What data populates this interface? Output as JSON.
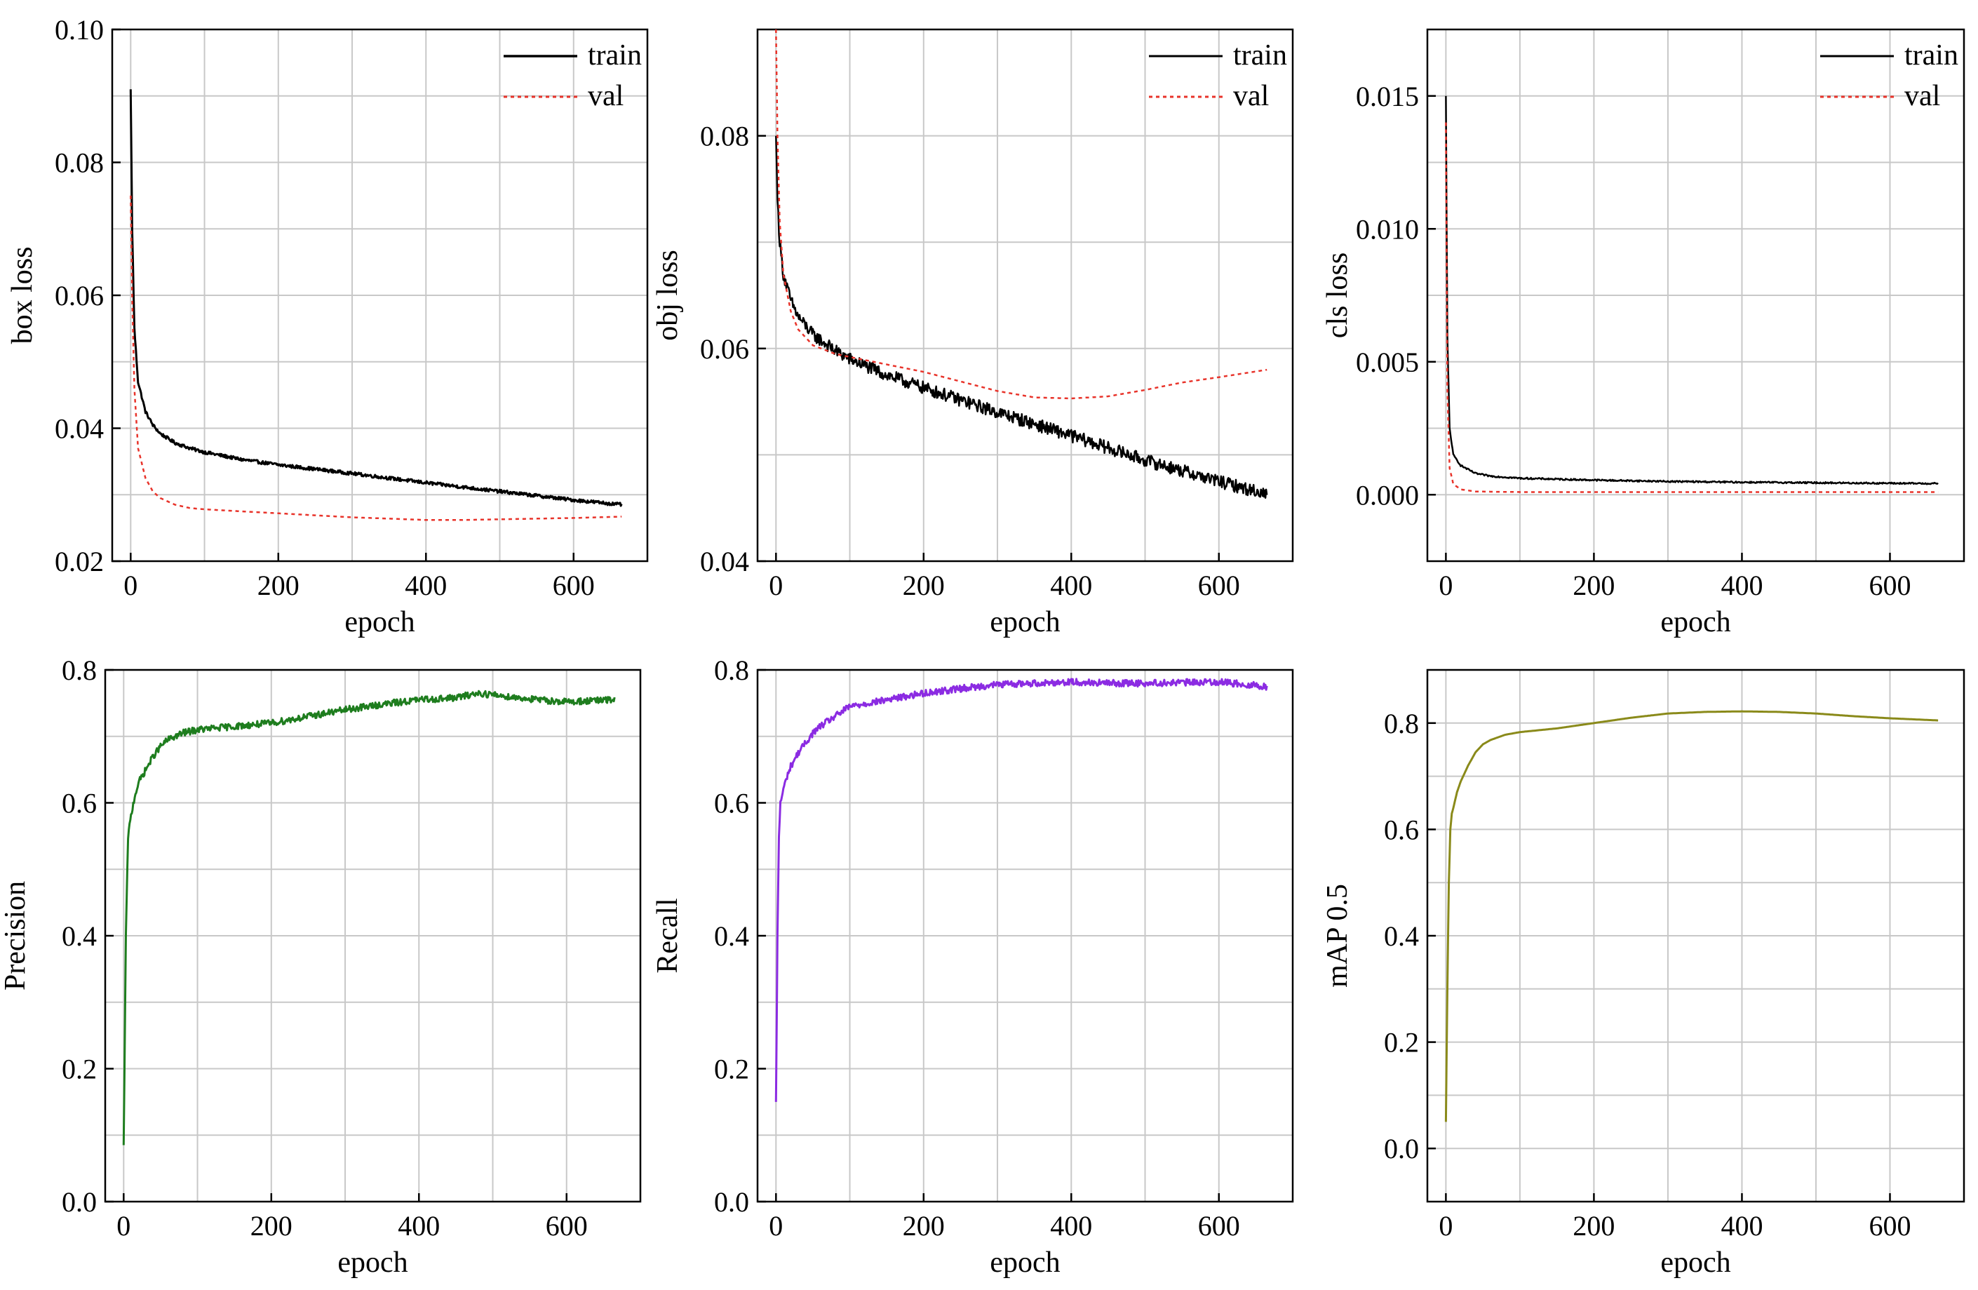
{
  "figure": {
    "background": "#ffffff",
    "grid_color": "#c8c8c8",
    "frame_color": "#000000"
  },
  "chart_data": [
    {
      "id": "box",
      "type": "line",
      "xlabel": "epoch",
      "ylabel": "box loss",
      "xlim": [
        -25,
        700
      ],
      "ylim": [
        0.02,
        0.1
      ],
      "xticks": [
        0,
        200,
        400,
        600
      ],
      "yticks": [
        0.02,
        0.04,
        0.06,
        0.08,
        0.1
      ],
      "ytick_labels": [
        "0.02",
        "0.04",
        "0.06",
        "0.08",
        "0.10"
      ],
      "xminor": 100,
      "yminor": 0.01,
      "legend": "top-right",
      "series": [
        {
          "name": "train",
          "color": "#000000",
          "dash": "",
          "width": 3,
          "noise": 0.00025,
          "x": [
            0,
            2,
            5,
            10,
            20,
            30,
            40,
            60,
            80,
            100,
            150,
            200,
            300,
            400,
            500,
            600,
            665
          ],
          "y": [
            0.091,
            0.07,
            0.055,
            0.047,
            0.0425,
            0.0405,
            0.0392,
            0.0378,
            0.037,
            0.0364,
            0.0353,
            0.0345,
            0.0332,
            0.0318,
            0.0305,
            0.0292,
            0.0285
          ]
        },
        {
          "name": "val",
          "color": "#e8332a",
          "dash": "5,5",
          "width": 2.5,
          "noise": 0,
          "x": [
            0,
            2,
            5,
            10,
            20,
            30,
            40,
            60,
            80,
            100,
            200,
            300,
            400,
            450,
            500,
            600,
            665
          ],
          "y": [
            0.075,
            0.06,
            0.046,
            0.037,
            0.0325,
            0.0305,
            0.0295,
            0.0285,
            0.028,
            0.0278,
            0.0272,
            0.0266,
            0.0262,
            0.0262,
            0.0263,
            0.0265,
            0.0267
          ]
        }
      ]
    },
    {
      "id": "obj",
      "type": "line",
      "xlabel": "epoch",
      "ylabel": "obj loss",
      "xlim": [
        -25,
        700
      ],
      "ylim": [
        0.04,
        0.09
      ],
      "xticks": [
        0,
        200,
        400,
        600
      ],
      "yticks": [
        0.04,
        0.06,
        0.08
      ],
      "ytick_labels": [
        "0.04",
        "0.06",
        "0.08"
      ],
      "xminor": 100,
      "yminor": 0.01,
      "legend": "top-right",
      "series": [
        {
          "name": "train",
          "color": "#000000",
          "dash": "",
          "width": 2.5,
          "noise": 0.0006,
          "x": [
            0,
            2,
            5,
            10,
            20,
            30,
            50,
            80,
            100,
            150,
            200,
            300,
            400,
            500,
            600,
            665
          ],
          "y": [
            0.08,
            0.074,
            0.07,
            0.067,
            0.0645,
            0.063,
            0.0613,
            0.0598,
            0.059,
            0.0575,
            0.0563,
            0.054,
            0.0518,
            0.0495,
            0.0475,
            0.0463
          ]
        },
        {
          "name": "val",
          "color": "#e8332a",
          "dash": "5,5",
          "width": 2.5,
          "noise": 0,
          "x": [
            0,
            2,
            5,
            10,
            20,
            30,
            50,
            80,
            100,
            150,
            200,
            250,
            300,
            350,
            400,
            450,
            500,
            550,
            600,
            665
          ],
          "y": [
            0.09,
            0.08,
            0.072,
            0.067,
            0.0635,
            0.0618,
            0.0603,
            0.0595,
            0.0592,
            0.0585,
            0.0578,
            0.0569,
            0.056,
            0.0554,
            0.0553,
            0.0555,
            0.0561,
            0.0568,
            0.0573,
            0.058
          ]
        }
      ]
    },
    {
      "id": "cls",
      "type": "line",
      "xlabel": "epoch",
      "ylabel": "cls loss",
      "xlim": [
        -25,
        700
      ],
      "ylim": [
        -0.0025,
        0.0175
      ],
      "xticks": [
        0,
        200,
        400,
        600
      ],
      "yticks": [
        0.0,
        0.005,
        0.01,
        0.015
      ],
      "ytick_labels": [
        "0.000",
        "0.005",
        "0.010",
        "0.015"
      ],
      "xminor": 100,
      "yminor": 0.0025,
      "legend": "top-right",
      "series": [
        {
          "name": "train",
          "color": "#000000",
          "dash": "",
          "width": 2.5,
          "noise": 3e-05,
          "x": [
            0,
            2,
            5,
            10,
            20,
            40,
            60,
            100,
            200,
            300,
            400,
            500,
            600,
            665
          ],
          "y": [
            0.015,
            0.006,
            0.0025,
            0.0015,
            0.0011,
            0.0008,
            0.0007,
            0.00062,
            0.00055,
            0.0005,
            0.00047,
            0.00045,
            0.00043,
            0.00042
          ]
        },
        {
          "name": "val",
          "color": "#e8332a",
          "dash": "5,5",
          "width": 2.5,
          "noise": 0,
          "x": [
            0,
            2,
            5,
            10,
            20,
            40,
            100,
            200,
            400,
            665
          ],
          "y": [
            0.014,
            0.004,
            0.001,
            0.0004,
            0.0002,
            0.00012,
            0.0001,
            0.0001,
            0.0001,
            0.0001
          ]
        }
      ]
    },
    {
      "id": "precision",
      "type": "line",
      "xlabel": "epoch",
      "ylabel": "Precision",
      "xlim": [
        -25,
        700
      ],
      "ylim": [
        0.0,
        0.8
      ],
      "xticks": [
        0,
        200,
        400,
        600
      ],
      "yticks": [
        0.0,
        0.2,
        0.4,
        0.6,
        0.8
      ],
      "ytick_labels": [
        "0.0",
        "0.2",
        "0.4",
        "0.6",
        "0.8"
      ],
      "xminor": 100,
      "yminor": 0.1,
      "legend": "none",
      "series": [
        {
          "name": "precision",
          "color": "#1e7d1e",
          "dash": "",
          "width": 3,
          "noise": 0.005,
          "x": [
            0,
            3,
            6,
            10,
            15,
            20,
            30,
            40,
            50,
            60,
            80,
            100,
            150,
            200,
            250,
            300,
            350,
            400,
            450,
            480,
            520,
            560,
            600,
            665
          ],
          "y": [
            0.085,
            0.4,
            0.55,
            0.58,
            0.61,
            0.63,
            0.65,
            0.67,
            0.685,
            0.695,
            0.705,
            0.71,
            0.715,
            0.72,
            0.73,
            0.74,
            0.748,
            0.755,
            0.758,
            0.765,
            0.76,
            0.755,
            0.752,
            0.755
          ]
        }
      ]
    },
    {
      "id": "recall",
      "type": "line",
      "xlabel": "epoch",
      "ylabel": "Recall",
      "xlim": [
        -25,
        700
      ],
      "ylim": [
        0.0,
        0.8
      ],
      "xticks": [
        0,
        200,
        400,
        600
      ],
      "yticks": [
        0.0,
        0.2,
        0.4,
        0.6,
        0.8
      ],
      "ytick_labels": [
        "0.0",
        "0.2",
        "0.4",
        "0.6",
        "0.8"
      ],
      "xminor": 100,
      "yminor": 0.1,
      "legend": "none",
      "series": [
        {
          "name": "recall",
          "color": "#8b2be2",
          "dash": "",
          "width": 3,
          "noise": 0.005,
          "x": [
            0,
            2,
            4,
            6,
            10,
            15,
            20,
            30,
            40,
            50,
            60,
            80,
            100,
            150,
            200,
            250,
            300,
            350,
            400,
            450,
            500,
            550,
            600,
            665
          ],
          "y": [
            0.15,
            0.4,
            0.55,
            0.6,
            0.62,
            0.64,
            0.655,
            0.675,
            0.69,
            0.705,
            0.715,
            0.73,
            0.745,
            0.755,
            0.765,
            0.772,
            0.778,
            0.78,
            0.782,
            0.78,
            0.78,
            0.781,
            0.782,
            0.775
          ]
        }
      ]
    },
    {
      "id": "map",
      "type": "line",
      "xlabel": "epoch",
      "ylabel": "mAP 0.5",
      "xlim": [
        -25,
        700
      ],
      "ylim": [
        -0.1,
        0.9
      ],
      "xticks": [
        0,
        200,
        400,
        600
      ],
      "yticks": [
        0.0,
        0.2,
        0.4,
        0.6,
        0.8
      ],
      "ytick_labels": [
        "0.0",
        "0.2",
        "0.4",
        "0.6",
        "0.8"
      ],
      "xminor": 100,
      "yminor": 0.1,
      "legend": "none",
      "series": [
        {
          "name": "mAP 0.5",
          "color": "#8a8a1a",
          "dash": "",
          "width": 3,
          "noise": 0,
          "x": [
            0,
            2,
            4,
            6,
            8,
            10,
            15,
            20,
            30,
            40,
            50,
            60,
            80,
            100,
            150,
            200,
            250,
            300,
            350,
            400,
            450,
            500,
            550,
            600,
            665
          ],
          "y": [
            0.05,
            0.3,
            0.5,
            0.6,
            0.63,
            0.64,
            0.67,
            0.69,
            0.72,
            0.745,
            0.76,
            0.768,
            0.778,
            0.783,
            0.79,
            0.8,
            0.81,
            0.818,
            0.821,
            0.822,
            0.821,
            0.818,
            0.813,
            0.809,
            0.805
          ]
        }
      ]
    }
  ]
}
